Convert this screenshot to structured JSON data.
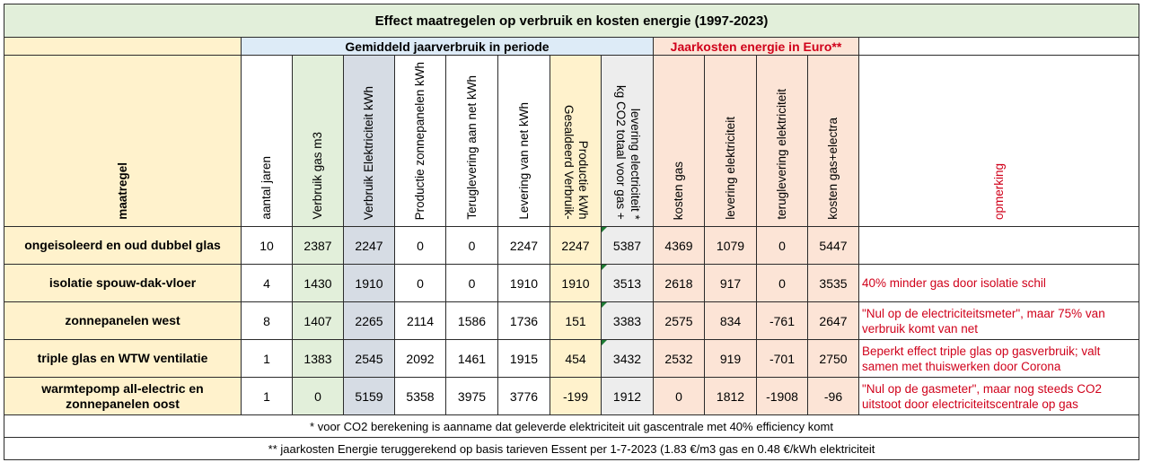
{
  "title": "Effect maatregelen op verbruik en kosten energie (1997-2023)",
  "group_headers": {
    "usage": "Gemiddeld jaarverbruik in periode",
    "costs": "Jaarkosten energie in Euro**"
  },
  "columns": {
    "maatregel": "maatregel",
    "aantal_jaren": "aantal jaren",
    "gas": "Verbruik gas m3",
    "elec": "Verbruik Elektriciteit kWh",
    "zon": "Productie zonnepanelen kWh",
    "terug": "Teruglevering aan net kWh",
    "lev": "Levering van net kWh",
    "sald_1": "Gesaldeerd Verbruik-",
    "sald_2": "Productie kWh",
    "co2_1": "kg CO2 totaal voor gas +",
    "co2_2": "levering electriciteit *",
    "kgas": "kosten gas",
    "klev": "levering elektriciteit",
    "kterug": "teruglevering elektriciteit",
    "ktot": "kosten gas+electra",
    "opm": "opmerking"
  },
  "rows": [
    {
      "label": [
        "ongeisoleerd en oud dubbel glas"
      ],
      "jaren": "10",
      "gas": "2387",
      "elec": "2247",
      "zon": "0",
      "terug": "0",
      "lev": "2247",
      "sald": "2247",
      "co2": "5387",
      "kgas": "4369",
      "klev": "1079",
      "kterug": "0",
      "ktot": "5447",
      "opm": []
    },
    {
      "label": [
        "isolatie spouw-dak-vloer"
      ],
      "jaren": "4",
      "gas": "1430",
      "elec": "1910",
      "zon": "0",
      "terug": "0",
      "lev": "1910",
      "sald": "1910",
      "co2": "3513",
      "kgas": "2618",
      "klev": "917",
      "kterug": "0",
      "ktot": "3535",
      "opm": [
        "40% minder gas door isolatie schil"
      ]
    },
    {
      "label": [
        "zonnepanelen west"
      ],
      "jaren": "8",
      "gas": "1407",
      "elec": "2265",
      "zon": "2114",
      "terug": "1586",
      "lev": "1736",
      "sald": "151",
      "co2": "3383",
      "kgas": "2575",
      "klev": "834",
      "kterug": "-761",
      "ktot": "2647",
      "opm": [
        "\"Nul op de electriciteitsmeter\", maar 75% van",
        "verbruik komt van net"
      ]
    },
    {
      "label": [
        "triple glas en WTW ventilatie"
      ],
      "jaren": "1",
      "gas": "1383",
      "elec": "2545",
      "zon": "2092",
      "terug": "1461",
      "lev": "1915",
      "sald": "454",
      "co2": "3432",
      "kgas": "2532",
      "klev": "919",
      "kterug": "-701",
      "ktot": "2750",
      "opm": [
        "Beperkt effect triple glas op gasverbruik; valt",
        "samen met thuiswerken door Corona"
      ]
    },
    {
      "label": [
        "warmtepomp all-electric en",
        "zonnepanelen oost"
      ],
      "jaren": "1",
      "gas": "0",
      "elec": "5159",
      "zon": "5358",
      "terug": "3975",
      "lev": "3776",
      "sald": "-199",
      "co2": "1912",
      "kgas": "0",
      "klev": "1812",
      "kterug": "-1908",
      "ktot": "-96",
      "opm": [
        "\"Nul op de gasmeter\", maar nog steeds CO2",
        "uitstoot door electriciteitscentrale op gas"
      ]
    }
  ],
  "footnotes": {
    "co2": "* voor CO2 berekening is aanname dat geleverde elektriciteit uit gascentrale met 40% efficiency komt",
    "costs": "** jaarkosten Energie teruggerekend op basis tarieven Essent per 1-7-2023 (1.83 €/m3 gas en 0.48 €/kWh elektriciteit"
  },
  "colors": {
    "title_bg": "#e2efda",
    "usage_header_bg": "#ddebf7",
    "cost_header_bg": "#fce4d6",
    "label_bg": "#fff2cc",
    "gas_bg": "#e2efda",
    "elec_bg": "#d6dce4",
    "co2_bg": "#ededed",
    "remark_text": "#d0021b"
  }
}
